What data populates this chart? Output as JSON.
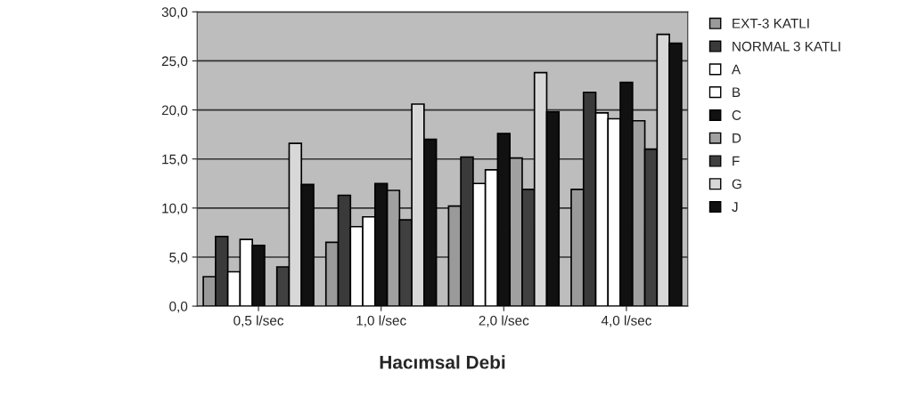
{
  "chart_data": {
    "type": "bar",
    "xlabel": "Hacımsal Debi",
    "categories": [
      "0,5 l/sec",
      "1,0 l/sec",
      "2,0 l/sec",
      "4,0 l/sec"
    ],
    "series": [
      {
        "name": "EXT-3 KATLI",
        "color": "#9a9a9a",
        "values": [
          3.0,
          6.5,
          10.2,
          11.9
        ]
      },
      {
        "name": "NORMAL 3 KATLI",
        "color": "#3a3a3a",
        "values": [
          7.1,
          11.3,
          15.2,
          21.8
        ]
      },
      {
        "name": "A",
        "color": "#ffffff",
        "values": [
          3.5,
          8.1,
          12.5,
          19.7
        ]
      },
      {
        "name": "B",
        "color": "#ffffff",
        "values": [
          6.8,
          9.1,
          13.9,
          19.1
        ]
      },
      {
        "name": "C",
        "color": "#111111",
        "values": [
          6.2,
          12.5,
          17.6,
          22.8
        ]
      },
      {
        "name": "D",
        "color": "#a0a0a0",
        "values": [
          null,
          11.8,
          15.1,
          18.9
        ]
      },
      {
        "name": "F",
        "color": "#404040",
        "values": [
          4.0,
          8.8,
          11.9,
          16.0
        ]
      },
      {
        "name": "G",
        "color": "#d8d8d8",
        "values": [
          16.6,
          20.6,
          23.8,
          27.7
        ]
      },
      {
        "name": "J",
        "color": "#111111",
        "values": [
          12.4,
          17.0,
          19.8,
          26.8
        ]
      }
    ],
    "ylim": [
      0,
      30
    ],
    "yticks": [
      {
        "value": 0,
        "label": "0,0"
      },
      {
        "value": 5,
        "label": "5,0"
      },
      {
        "value": 10,
        "label": "10,0"
      },
      {
        "value": 15,
        "label": "15,0"
      },
      {
        "value": 20,
        "label": "20,0"
      },
      {
        "value": 25,
        "label": "25,0"
      },
      {
        "value": 30,
        "label": "30,0"
      }
    ],
    "grid": "y",
    "legend": "right"
  }
}
